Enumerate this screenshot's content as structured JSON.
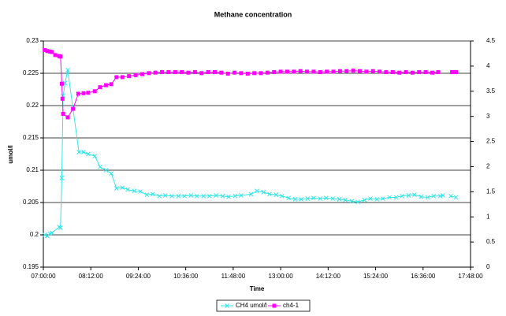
{
  "chart_data": {
    "type": "line",
    "title": "Methane concentration",
    "x_label": "Time",
    "y_label": "umol/l",
    "xlim": [
      "07:00:00",
      "17:48:00"
    ],
    "xticks": [
      "07:00:00",
      "08:12:00",
      "09:24:00",
      "10:36:00",
      "11:48:00",
      "13:00:00",
      "14:12:00",
      "15:24:00",
      "16:36:00",
      "17:48:00"
    ],
    "ylim": [
      0.195,
      0.23
    ],
    "yticks": [
      0.195,
      0.2,
      0.205,
      0.21,
      0.215,
      0.22,
      0.225,
      0.23
    ],
    "y2lim": [
      0,
      4.5
    ],
    "y2ticks": [
      0,
      0.5,
      1,
      1.5,
      2,
      2.5,
      3,
      3.5,
      4,
      4.5
    ],
    "grid": true,
    "legend": "bottom",
    "series": [
      {
        "name": "CH4 umol/l",
        "color": "#33e6e6",
        "marker": "x",
        "x": [
          "07:02:00",
          "07:06:00",
          "07:10:00",
          "07:13:00",
          "07:24:00",
          "07:26:00",
          "07:28:00",
          "07:30:00",
          "07:33:00",
          "07:37:00",
          "07:45:00",
          "07:54:00",
          "08:01:00",
          "08:08:00",
          "08:18:00",
          "08:26:00",
          "08:35:00",
          "08:43:00",
          "08:51:00",
          "09:00:00",
          "09:08:00",
          "09:18:00",
          "09:27:00",
          "09:37:00",
          "09:46:00",
          "09:56:00",
          "10:05:00",
          "10:15:00",
          "10:25:00",
          "10:34:00",
          "10:44:00",
          "10:53:00",
          "11:03:00",
          "11:12:00",
          "11:22:00",
          "11:32:00",
          "11:41:00",
          "11:51:00",
          "12:00:00",
          "12:15:00",
          "12:24:00",
          "12:34:00",
          "12:43:00",
          "12:53:00",
          "13:02:00",
          "13:12:00",
          "13:22:00",
          "13:31:00",
          "13:41:00",
          "13:50:00",
          "14:00:00",
          "14:09:00",
          "14:19:00",
          "14:29:00",
          "14:38:00",
          "14:48:00",
          "14:57:00",
          "15:07:00",
          "15:16:00",
          "15:26:00",
          "15:35:00",
          "15:45:00",
          "15:55:00",
          "16:04:00",
          "16:14:00",
          "16:23:00",
          "16:33:00",
          "16:43:00",
          "16:52:00",
          "17:02:00",
          "17:06:00",
          "17:12:00",
          "17:18:00",
          "17:26:00"
        ],
        "values": [
          0.2,
          0.1998,
          0.2002,
          0.2003,
          0.2012,
          0.2011,
          0.2088,
          0.2215,
          0.2235,
          0.2255,
          0.2195,
          0.2128,
          0.2128,
          0.2125,
          0.2122,
          0.2105,
          0.21,
          0.2095,
          0.2072,
          0.2073,
          0.207,
          0.2068,
          0.2067,
          0.2062,
          0.2063,
          0.206,
          0.2061,
          0.206,
          0.206,
          0.206,
          0.2061,
          0.206,
          0.206,
          0.206,
          0.2061,
          0.206,
          0.2059,
          0.206,
          0.2061,
          0.2063,
          0.2068,
          0.2066,
          0.2063,
          0.2062,
          0.206,
          0.2057,
          0.2055,
          0.2055,
          0.2056,
          0.2057,
          0.2056,
          0.2057,
          0.2056,
          0.2055,
          0.2054,
          0.2052,
          0.2051,
          0.2054,
          0.2056,
          0.2055,
          0.2056,
          0.2058,
          0.2058,
          0.206,
          0.2061,
          0.2062,
          0.2059,
          0.2058,
          0.206,
          0.206,
          0.2061,
          null,
          0.206,
          0.2058
        ]
      },
      {
        "name": "ch4-1",
        "color": "#ff00ff",
        "marker": "square",
        "axis": "y2",
        "x": [
          "07:02:00",
          "07:06:00",
          "07:10:00",
          "07:13:00",
          "07:18:00",
          "07:24:00",
          "07:26:00",
          "07:28:00",
          "07:29:00",
          "07:30:00",
          "07:37:00",
          "07:45:00",
          "07:53:00",
          "08:01:00",
          "08:08:00",
          "08:18:00",
          "08:26:00",
          "08:35:00",
          "08:43:00",
          "08:51:00",
          "09:00:00",
          "09:10:00",
          "09:20:00",
          "09:30:00",
          "09:40:00",
          "09:50:00",
          "10:00:00",
          "10:10:00",
          "10:20:00",
          "10:30:00",
          "10:40:00",
          "10:50:00",
          "11:00:00",
          "11:10:00",
          "11:20:00",
          "11:30:00",
          "11:40:00",
          "11:50:00",
          "12:00:00",
          "12:10:00",
          "12:20:00",
          "12:30:00",
          "12:40:00",
          "12:50:00",
          "13:00:00",
          "13:10:00",
          "13:20:00",
          "13:30:00",
          "13:40:00",
          "13:50:00",
          "14:00:00",
          "14:10:00",
          "14:20:00",
          "14:30:00",
          "14:40:00",
          "14:50:00",
          "15:00:00",
          "15:10:00",
          "15:20:00",
          "15:30:00",
          "15:40:00",
          "15:50:00",
          "16:00:00",
          "16:10:00",
          "16:20:00",
          "16:30:00",
          "16:40:00",
          "16:50:00",
          "16:59:00",
          "17:10:00",
          "17:20:00",
          "17:26:00"
        ],
        "values": [
          4.32,
          4.3,
          4.29,
          4.28,
          4.22,
          4.2,
          4.19,
          3.65,
          3.35,
          3.05,
          2.98,
          3.15,
          3.45,
          3.46,
          3.47,
          3.5,
          3.58,
          3.62,
          3.64,
          3.78,
          3.78,
          3.8,
          3.82,
          3.84,
          3.86,
          3.87,
          3.88,
          3.88,
          3.88,
          3.88,
          3.87,
          3.88,
          3.86,
          3.88,
          3.88,
          3.87,
          3.85,
          3.87,
          3.86,
          3.85,
          3.86,
          3.86,
          3.87,
          3.88,
          3.89,
          3.89,
          3.89,
          3.9,
          3.89,
          3.89,
          3.88,
          3.89,
          3.89,
          3.9,
          3.9,
          3.91,
          3.9,
          3.89,
          3.9,
          3.89,
          3.88,
          3.88,
          3.87,
          3.88,
          3.87,
          3.88,
          3.88,
          3.87,
          3.88,
          null,
          3.88,
          3.88
        ]
      }
    ]
  }
}
